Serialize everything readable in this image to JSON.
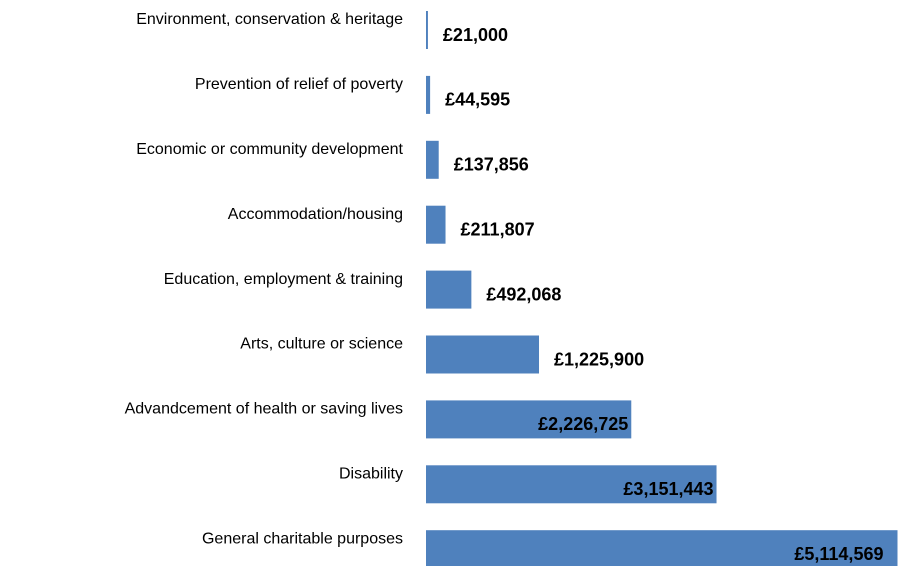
{
  "chart_data": {
    "type": "bar",
    "orientation": "horizontal",
    "categories": [
      "Environment, conservation & heritage",
      "Prevention of relief of poverty",
      "Economic or community development",
      "Accommodation/housing",
      "Education, employment & training",
      "Arts, culture or science",
      "Advandcement of health or saving lives",
      "Disability",
      "General charitable purposes"
    ],
    "values": [
      21000,
      44595,
      137856,
      211807,
      492068,
      1225900,
      2226725,
      3151443,
      5114569
    ],
    "value_labels": [
      "£21,000",
      "£44,595",
      "£137,856",
      "£211,807",
      "£492,068",
      "£1,225,900",
      "£2,226,725",
      "£3,151,443",
      "£5,114,569"
    ],
    "color": "#4f81bd",
    "xlim": [
      0,
      5120000
    ]
  }
}
